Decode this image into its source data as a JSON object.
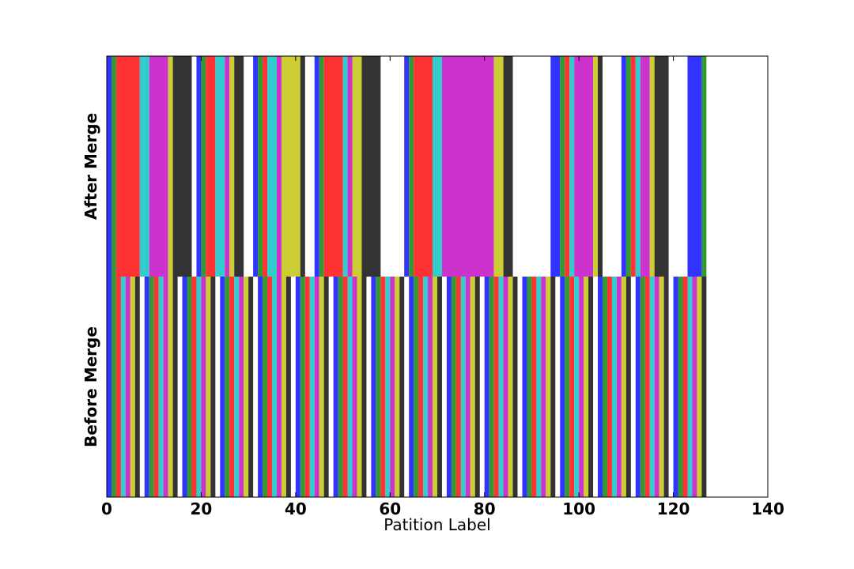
{
  "chart_data": {
    "type": "bar",
    "orientation": "horizontal-stacked-segments",
    "title": "",
    "xlabel": "Patition Label",
    "xlim": [
      0,
      140
    ],
    "xticks": [
      "0",
      "20",
      "40",
      "60",
      "80",
      "100",
      "120",
      "140"
    ],
    "rows": [
      "Before Merge",
      "After Merge"
    ],
    "colors": [
      "#3333ff",
      "#339933",
      "#ff3333",
      "#33cccc",
      "#cc33cc",
      "#cccc33",
      "#333333"
    ],
    "grid": false,
    "series": [
      {
        "name": "Before Merge",
        "segments": [
          [
            0,
            1,
            0
          ],
          [
            1,
            2,
            1
          ],
          [
            2,
            3,
            2
          ],
          [
            3,
            4,
            3
          ],
          [
            4,
            5,
            4
          ],
          [
            5,
            6,
            5
          ],
          [
            6,
            7,
            6
          ],
          [
            8,
            9,
            0
          ],
          [
            9,
            10,
            1
          ],
          [
            10,
            11,
            2
          ],
          [
            11,
            12,
            3
          ],
          [
            12,
            13,
            4
          ],
          [
            13,
            14,
            5
          ],
          [
            14,
            15,
            6
          ],
          [
            16,
            17,
            0
          ],
          [
            17,
            18,
            1
          ],
          [
            18,
            19,
            2
          ],
          [
            19,
            20,
            3
          ],
          [
            20,
            21,
            4
          ],
          [
            21,
            22,
            5
          ],
          [
            22,
            23,
            6
          ],
          [
            24,
            25,
            0
          ],
          [
            25,
            26,
            1
          ],
          [
            26,
            27,
            2
          ],
          [
            27,
            28,
            3
          ],
          [
            28,
            29,
            4
          ],
          [
            29,
            30,
            5
          ],
          [
            30,
            31,
            6
          ],
          [
            32,
            33,
            0
          ],
          [
            33,
            34,
            1
          ],
          [
            34,
            35,
            2
          ],
          [
            35,
            36,
            3
          ],
          [
            36,
            37,
            4
          ],
          [
            37,
            38,
            5
          ],
          [
            38,
            39,
            6
          ],
          [
            40,
            41,
            0
          ],
          [
            41,
            42,
            1
          ],
          [
            42,
            43,
            2
          ],
          [
            43,
            44,
            3
          ],
          [
            44,
            45,
            4
          ],
          [
            45,
            46,
            5
          ],
          [
            46,
            47,
            6
          ],
          [
            48,
            49,
            0
          ],
          [
            49,
            50,
            1
          ],
          [
            50,
            51,
            2
          ],
          [
            51,
            52,
            3
          ],
          [
            52,
            53,
            4
          ],
          [
            53,
            54,
            5
          ],
          [
            54,
            55,
            6
          ],
          [
            56,
            57,
            0
          ],
          [
            57,
            58,
            1
          ],
          [
            58,
            59,
            2
          ],
          [
            59,
            60,
            3
          ],
          [
            60,
            61,
            4
          ],
          [
            61,
            62,
            5
          ],
          [
            62,
            63,
            6
          ],
          [
            64,
            65,
            0
          ],
          [
            65,
            66,
            1
          ],
          [
            66,
            67,
            2
          ],
          [
            67,
            68,
            3
          ],
          [
            68,
            69,
            4
          ],
          [
            69,
            70,
            5
          ],
          [
            70,
            71,
            6
          ],
          [
            72,
            73,
            0
          ],
          [
            73,
            74,
            1
          ],
          [
            74,
            75,
            2
          ],
          [
            75,
            76,
            3
          ],
          [
            76,
            77,
            4
          ],
          [
            77,
            78,
            5
          ],
          [
            78,
            79,
            6
          ],
          [
            80,
            81,
            0
          ],
          [
            81,
            82,
            1
          ],
          [
            82,
            83,
            2
          ],
          [
            83,
            84,
            3
          ],
          [
            84,
            85,
            4
          ],
          [
            85,
            86,
            5
          ],
          [
            86,
            87,
            6
          ],
          [
            88,
            89,
            0
          ],
          [
            89,
            90,
            1
          ],
          [
            90,
            91,
            2
          ],
          [
            91,
            92,
            3
          ],
          [
            92,
            93,
            4
          ],
          [
            93,
            94,
            5
          ],
          [
            94,
            95,
            6
          ],
          [
            96,
            97,
            0
          ],
          [
            97,
            98,
            1
          ],
          [
            98,
            99,
            2
          ],
          [
            99,
            100,
            3
          ],
          [
            100,
            101,
            4
          ],
          [
            101,
            102,
            5
          ],
          [
            102,
            103,
            6
          ],
          [
            104,
            105,
            0
          ],
          [
            105,
            106,
            1
          ],
          [
            106,
            107,
            2
          ],
          [
            107,
            108,
            3
          ],
          [
            108,
            109,
            4
          ],
          [
            109,
            110,
            5
          ],
          [
            110,
            111,
            6
          ],
          [
            112,
            113,
            0
          ],
          [
            113,
            114,
            1
          ],
          [
            114,
            115,
            2
          ],
          [
            115,
            116,
            3
          ],
          [
            116,
            117,
            4
          ],
          [
            117,
            118,
            5
          ],
          [
            118,
            119,
            6
          ],
          [
            120,
            121,
            0
          ],
          [
            121,
            122,
            1
          ],
          [
            122,
            123,
            2
          ],
          [
            123,
            124,
            3
          ],
          [
            124,
            125,
            4
          ],
          [
            125,
            126,
            5
          ],
          [
            126,
            127,
            6
          ]
        ]
      },
      {
        "name": "After Merge",
        "segments": [
          [
            0,
            1,
            0
          ],
          [
            1,
            2,
            1
          ],
          [
            2,
            7,
            2
          ],
          [
            7,
            9,
            3
          ],
          [
            9,
            13,
            4
          ],
          [
            13,
            14,
            5
          ],
          [
            14,
            18,
            6
          ],
          [
            19,
            20,
            0
          ],
          [
            20,
            21,
            1
          ],
          [
            21,
            23,
            2
          ],
          [
            23,
            25,
            3
          ],
          [
            25,
            26,
            4
          ],
          [
            26,
            27,
            5
          ],
          [
            27,
            29,
            6
          ],
          [
            31,
            32,
            0
          ],
          [
            32,
            33,
            1
          ],
          [
            33,
            34,
            2
          ],
          [
            34,
            36,
            3
          ],
          [
            36,
            37,
            4
          ],
          [
            37,
            41,
            5
          ],
          [
            41,
            42,
            6
          ],
          [
            44,
            45,
            0
          ],
          [
            45,
            46,
            1
          ],
          [
            46,
            50,
            2
          ],
          [
            50,
            51,
            3
          ],
          [
            51,
            52,
            4
          ],
          [
            52,
            54,
            5
          ],
          [
            54,
            58,
            6
          ],
          [
            63,
            64,
            0
          ],
          [
            64,
            65,
            1
          ],
          [
            65,
            69,
            2
          ],
          [
            69,
            71,
            3
          ],
          [
            71,
            82,
            4
          ],
          [
            82,
            84,
            5
          ],
          [
            84,
            86,
            6
          ],
          [
            94,
            96,
            0
          ],
          [
            96,
            97,
            1
          ],
          [
            97,
            98,
            2
          ],
          [
            98,
            99,
            3
          ],
          [
            99,
            103,
            4
          ],
          [
            103,
            104,
            5
          ],
          [
            104,
            105,
            6
          ],
          [
            109,
            110,
            0
          ],
          [
            110,
            111,
            1
          ],
          [
            111,
            112,
            2
          ],
          [
            112,
            113,
            3
          ],
          [
            113,
            115,
            4
          ],
          [
            115,
            116,
            5
          ],
          [
            116,
            119,
            6
          ],
          [
            123,
            126,
            0
          ],
          [
            126,
            127,
            1
          ]
        ]
      }
    ]
  }
}
